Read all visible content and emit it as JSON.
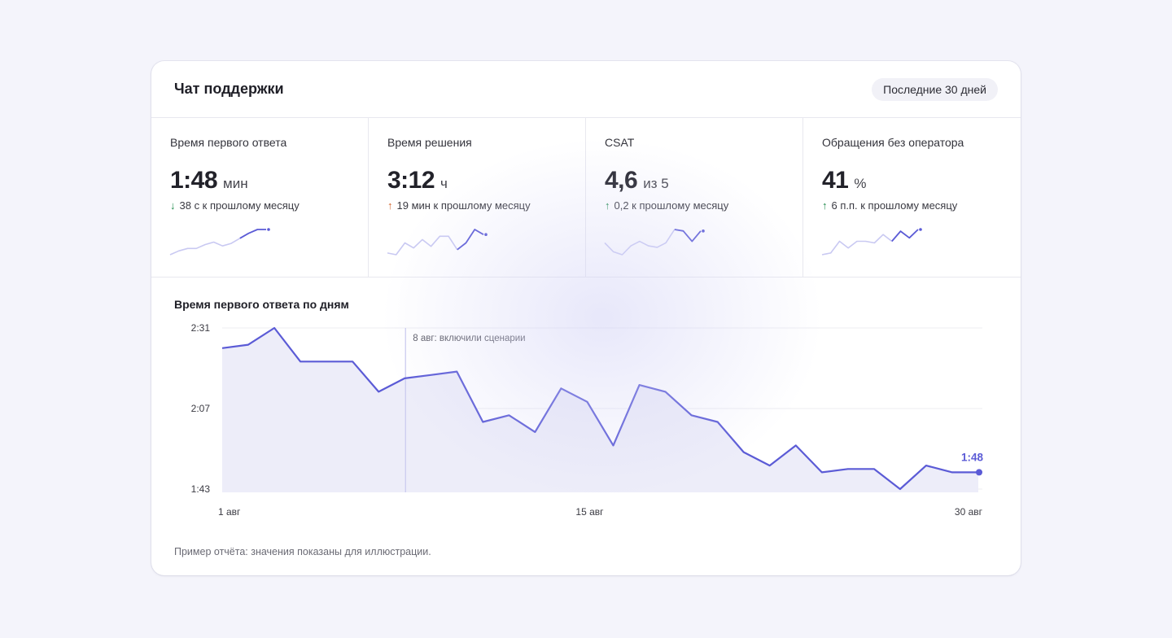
{
  "header": {
    "title": "Чат поддержки",
    "period": "Последние 30 дней"
  },
  "kpis": [
    {
      "label": "Время первого ответа",
      "value": "1:48",
      "unit": "мин",
      "delta_arrow": "↓",
      "delta_icon": "arrow-down-icon",
      "delta_color": "#1f8a4c",
      "delta_text": "38 с к прошлому месяцу",
      "spark": [
        10,
        13,
        15,
        15,
        18,
        20,
        17,
        19,
        23,
        27,
        30,
        30
      ]
    },
    {
      "label": "Время решения",
      "value": "3:12",
      "unit": "ч",
      "delta_arrow": "↑",
      "delta_icon": "arrow-up-icon",
      "delta_color": "#d2642b",
      "delta_text": "19 мин к прошлому месяцу",
      "spark": [
        12,
        11,
        18,
        15,
        20,
        16,
        22,
        22,
        14,
        18,
        26,
        23
      ]
    },
    {
      "label": "CSAT",
      "value": "4,6",
      "unit": "из 5",
      "delta_arrow": "↑",
      "delta_icon": "arrow-up-icon",
      "delta_color": "#1f8a4c",
      "delta_text": "0,2 к прошлому месяцу",
      "spark": [
        19,
        13,
        11,
        17,
        20,
        17,
        16,
        19,
        28,
        27,
        20,
        27
      ]
    },
    {
      "label": "Обращения без оператора",
      "value": "41",
      "unit": "%",
      "delta_arrow": "↑",
      "delta_icon": "arrow-up-icon",
      "delta_color": "#1f8a4c",
      "delta_text": "6 п.п. к прошлому месяцу",
      "spark": [
        11,
        12,
        19,
        15,
        19,
        19,
        18,
        23,
        19,
        25,
        21,
        26
      ]
    }
  ],
  "chart": {
    "title": "Время первого ответа по дням",
    "annotation": "8 авг: включили сценарии",
    "last_label": "1:48",
    "footnote": "Пример отчёта: значения показаны для иллюстрации.",
    "accent": "#5b5bd6"
  },
  "chart_data": {
    "type": "area",
    "title": "Время первого ответа по дням",
    "xlabel": "",
    "ylabel": "",
    "x": [
      1,
      2,
      3,
      4,
      5,
      6,
      7,
      8,
      9,
      10,
      11,
      12,
      13,
      14,
      15,
      16,
      17,
      18,
      19,
      20,
      21,
      22,
      23,
      24,
      25,
      26,
      27,
      28,
      29,
      30
    ],
    "x_ticks": [
      {
        "x": 1,
        "label": "1 авг"
      },
      {
        "x": 15,
        "label": "15 авг"
      },
      {
        "x": 30,
        "label": "30 авг"
      }
    ],
    "values_seconds": [
      145,
      146,
      151,
      141,
      141,
      141,
      132,
      136,
      137,
      138,
      123,
      125,
      120,
      133,
      129,
      116,
      134,
      132,
      125,
      123,
      114,
      110,
      116,
      108,
      109,
      109,
      103,
      110,
      108,
      108
    ],
    "y_ticks": [
      {
        "value": 103,
        "label": "1:43"
      },
      {
        "value": 127,
        "label": "2:07"
      },
      {
        "value": 151,
        "label": "2:31"
      }
    ],
    "ylim": [
      103,
      151
    ],
    "annotations": [
      {
        "x": 8,
        "text": "8 авг: включили сценарии"
      }
    ],
    "grid": true,
    "legend": "none"
  }
}
